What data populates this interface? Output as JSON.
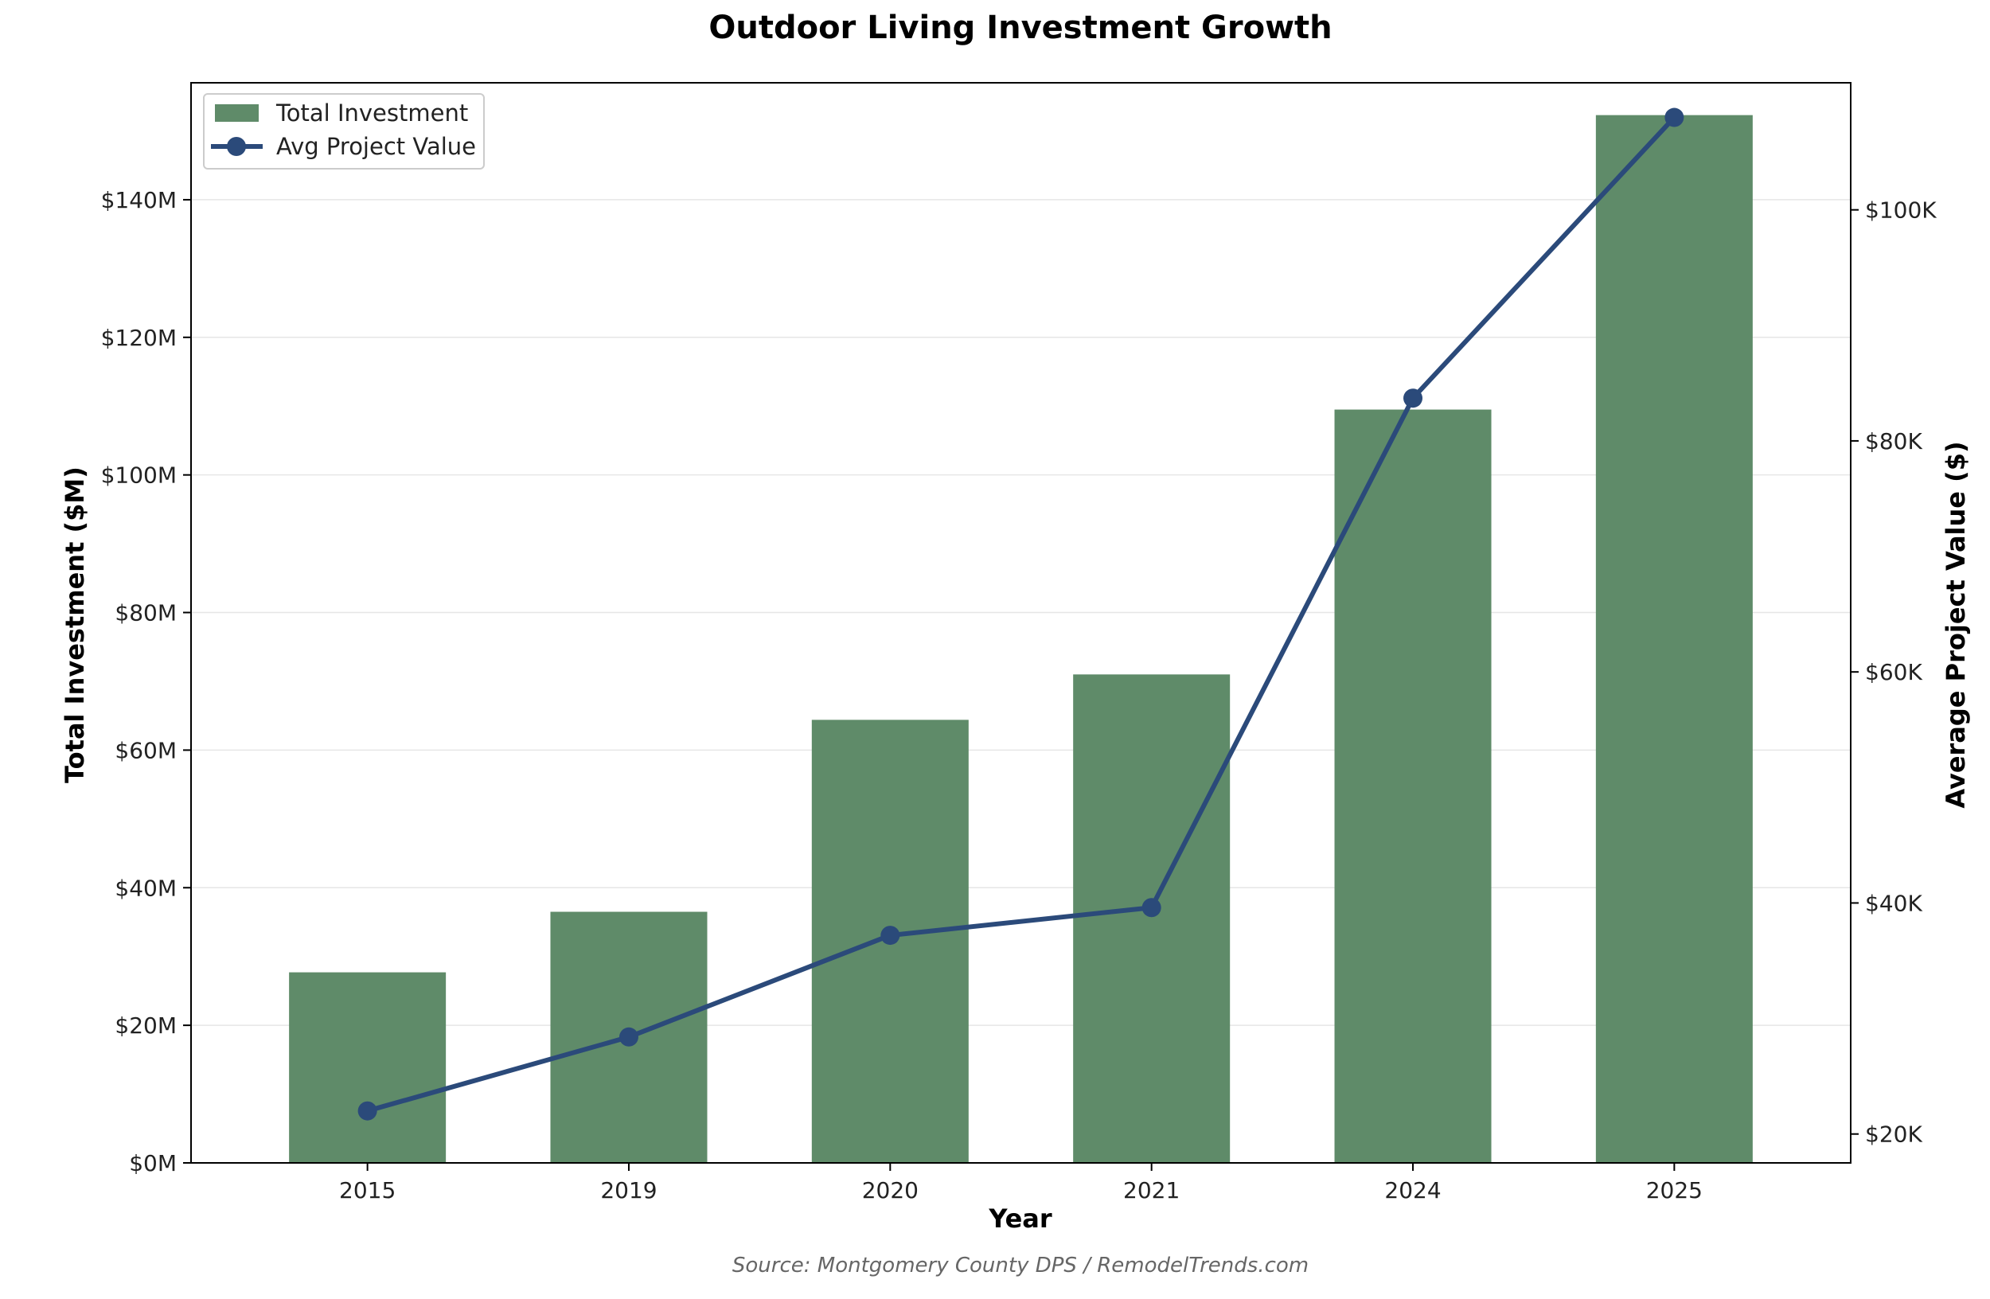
{
  "chart_data": {
    "type": "bar",
    "title": "Outdoor Living Investment Growth",
    "xlabel": "Year",
    "ylabel": "Total Investment ($M)",
    "y2label": "Average Project Value ($)",
    "categories": [
      "2015",
      "2019",
      "2020",
      "2021",
      "2024",
      "2025"
    ],
    "series": [
      {
        "name": "Total Investment",
        "type": "bar",
        "axis": "left",
        "values": [
          27.7,
          36.5,
          64.4,
          71.0,
          109.5,
          152.3
        ],
        "color": "#5f8b69"
      },
      {
        "name": "Avg Project Value",
        "type": "line",
        "axis": "right",
        "values": [
          22000,
          28400,
          37200,
          39600,
          83700,
          108000
        ],
        "color": "#2b4a7a"
      }
    ],
    "ylim": [
      0,
      157
    ],
    "y2lim": [
      17500,
      111000
    ],
    "yticks": [
      0,
      20,
      40,
      60,
      80,
      100,
      120,
      140
    ],
    "ytick_labels": [
      "$0M",
      "$20M",
      "$40M",
      "$60M",
      "$80M",
      "$100M",
      "$120M",
      "$140M"
    ],
    "y2ticks": [
      20000,
      40000,
      60000,
      80000,
      100000
    ],
    "y2tick_labels": [
      "$20K",
      "$40K",
      "$60K",
      "$80K",
      "$100K"
    ],
    "grid": true,
    "legend_position": "top-left",
    "source": "Source: Montgomery County DPS / RemodelTrends.com"
  }
}
